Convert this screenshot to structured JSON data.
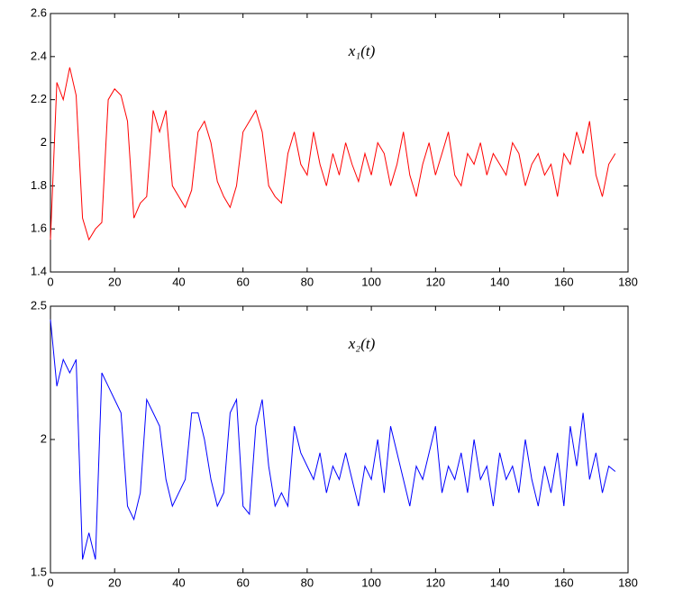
{
  "chart_data": [
    {
      "type": "line",
      "annotation": "x₁(t)",
      "color": "#ff0000",
      "x": [
        0,
        2,
        4,
        6,
        8,
        10,
        12,
        14,
        16,
        18,
        20,
        22,
        24,
        26,
        28,
        30,
        32,
        34,
        36,
        38,
        40,
        42,
        44,
        46,
        48,
        50,
        52,
        54,
        56,
        58,
        60,
        62,
        64,
        66,
        68,
        70,
        72,
        74,
        76,
        78,
        80,
        82,
        84,
        86,
        88,
        90,
        92,
        94,
        96,
        98,
        100,
        102,
        104,
        106,
        108,
        110,
        112,
        114,
        116,
        118,
        120,
        122,
        124,
        126,
        128,
        130,
        132,
        134,
        136,
        138,
        140,
        142,
        144,
        146,
        148,
        150,
        152,
        154,
        156,
        158,
        160,
        162,
        164,
        166,
        168,
        170,
        172,
        174,
        176
      ],
      "values": [
        1.55,
        2.28,
        2.2,
        2.35,
        2.22,
        1.65,
        1.55,
        1.6,
        1.63,
        2.2,
        2.25,
        2.22,
        2.1,
        1.65,
        1.72,
        1.75,
        2.15,
        2.05,
        2.15,
        1.8,
        1.75,
        1.7,
        1.78,
        2.05,
        2.1,
        2.0,
        1.82,
        1.75,
        1.7,
        1.8,
        2.05,
        2.1,
        2.15,
        2.05,
        1.8,
        1.75,
        1.72,
        1.95,
        2.05,
        1.9,
        1.85,
        2.05,
        1.9,
        1.8,
        1.95,
        1.85,
        2.0,
        1.9,
        1.82,
        1.95,
        1.85,
        2.0,
        1.95,
        1.8,
        1.9,
        2.05,
        1.85,
        1.75,
        1.9,
        2.0,
        1.85,
        1.95,
        2.05,
        1.85,
        1.8,
        1.95,
        1.9,
        2.0,
        1.85,
        1.95,
        1.9,
        1.85,
        2.0,
        1.95,
        1.8,
        1.9,
        1.95,
        1.85,
        1.9,
        1.75,
        1.95,
        1.9,
        2.05,
        1.95,
        2.1,
        1.85,
        1.75,
        1.9,
        1.95
      ],
      "xlim": [
        0,
        180
      ],
      "xticks": [
        0,
        20,
        40,
        60,
        80,
        100,
        120,
        140,
        160,
        180
      ],
      "ylim": [
        1.4,
        2.6
      ],
      "yticks": [
        1.4,
        1.6,
        1.8,
        2,
        2.2,
        2.4,
        2.6
      ]
    },
    {
      "type": "line",
      "annotation": "x₂(t)",
      "color": "#0000ff",
      "x": [
        0,
        2,
        4,
        6,
        8,
        10,
        12,
        14,
        16,
        18,
        20,
        22,
        24,
        26,
        28,
        30,
        32,
        34,
        36,
        38,
        40,
        42,
        44,
        46,
        48,
        50,
        52,
        54,
        56,
        58,
        60,
        62,
        64,
        66,
        68,
        70,
        72,
        74,
        76,
        78,
        80,
        82,
        84,
        86,
        88,
        90,
        92,
        94,
        96,
        98,
        100,
        102,
        104,
        106,
        108,
        110,
        112,
        114,
        116,
        118,
        120,
        122,
        124,
        126,
        128,
        130,
        132,
        134,
        136,
        138,
        140,
        142,
        144,
        146,
        148,
        150,
        152,
        154,
        156,
        158,
        160,
        162,
        164,
        166,
        168,
        170,
        172,
        174,
        176
      ],
      "values": [
        2.45,
        2.2,
        2.3,
        2.25,
        2.3,
        1.55,
        1.65,
        1.55,
        2.25,
        2.2,
        2.15,
        2.1,
        1.75,
        1.7,
        1.8,
        2.15,
        2.1,
        2.05,
        1.85,
        1.75,
        1.8,
        1.85,
        2.1,
        2.1,
        2.0,
        1.85,
        1.75,
        1.8,
        2.1,
        2.15,
        1.75,
        1.72,
        2.05,
        2.15,
        1.9,
        1.75,
        1.8,
        1.75,
        2.05,
        1.95,
        1.9,
        1.85,
        1.95,
        1.8,
        1.9,
        1.85,
        1.95,
        1.85,
        1.75,
        1.9,
        1.85,
        2.0,
        1.8,
        2.05,
        1.95,
        1.85,
        1.75,
        1.9,
        1.85,
        1.95,
        2.05,
        1.8,
        1.9,
        1.85,
        1.95,
        1.8,
        2.0,
        1.85,
        1.9,
        1.75,
        1.95,
        1.85,
        1.9,
        1.8,
        2.0,
        1.85,
        1.75,
        1.9,
        1.8,
        1.95,
        1.75,
        2.05,
        1.9,
        2.1,
        1.85,
        1.95,
        1.8,
        1.9,
        1.88
      ],
      "xlim": [
        0,
        180
      ],
      "xticks": [
        0,
        20,
        40,
        60,
        80,
        100,
        120,
        140,
        160,
        180
      ],
      "ylim": [
        1.5,
        2.5
      ],
      "yticks": [
        1.5,
        2,
        2.5
      ]
    }
  ]
}
